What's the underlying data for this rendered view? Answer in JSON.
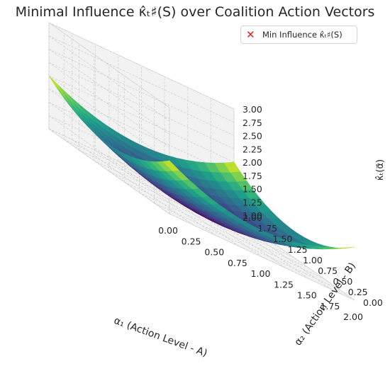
{
  "chart_data": {
    "type": "surface",
    "title": "Minimal Influence κ̂ₜ♯(S) over Coalition Action Vectors",
    "xlabel": "α₁ (Action Level - A)",
    "ylabel": "α₂ (Action Level - B)",
    "zlabel": "κ̂ₜ(α⃗)",
    "xlim": [
      0,
      2
    ],
    "ylim": [
      0,
      2
    ],
    "zlim": [
      1,
      3
    ],
    "x_ticks": [
      "0.00",
      "0.25",
      "0.50",
      "0.75",
      "1.00",
      "1.25",
      "1.50",
      "1.75",
      "2.00"
    ],
    "y_ticks": [
      "0.00",
      "0.25",
      "0.50",
      "0.75",
      "1.00",
      "1.25",
      "1.50",
      "1.75",
      "2.00"
    ],
    "z_ticks": [
      "1.00",
      "1.25",
      "1.50",
      "1.75",
      "2.00",
      "2.25",
      "2.50",
      "2.75",
      "3.00"
    ],
    "surface": {
      "function": "1 + 0.5*((a1-1)^2 + (a2-1)^2)",
      "grid_points": 20,
      "colormap": "viridis",
      "min": 1.0,
      "max": 2.0
    },
    "legend": [
      {
        "label": "Min Influence κ̂ₜ♯(S)",
        "marker": "x",
        "color": "#e02020"
      }
    ],
    "legend_position": "top-right",
    "grid": true
  }
}
